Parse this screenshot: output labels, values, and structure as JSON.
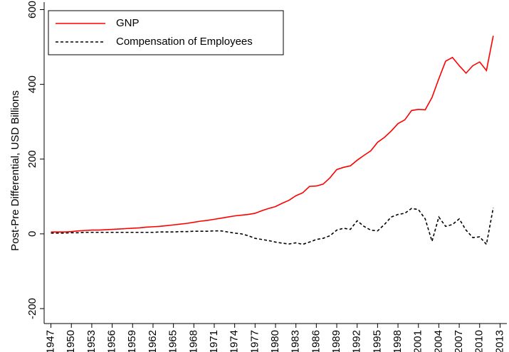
{
  "chart_data": {
    "type": "line",
    "y_label": "Post-Pre Differential, USD Billions",
    "x": [
      1947,
      1948,
      1949,
      1950,
      1951,
      1952,
      1953,
      1954,
      1955,
      1956,
      1957,
      1958,
      1959,
      1960,
      1961,
      1962,
      1963,
      1964,
      1965,
      1966,
      1967,
      1968,
      1969,
      1970,
      1971,
      1972,
      1973,
      1974,
      1975,
      1976,
      1977,
      1978,
      1979,
      1980,
      1981,
      1982,
      1983,
      1984,
      1985,
      1986,
      1987,
      1988,
      1989,
      1990,
      1991,
      1992,
      1993,
      1994,
      1995,
      1996,
      1997,
      1998,
      1999,
      2000,
      2001,
      2002,
      2003,
      2004,
      2005,
      2006,
      2007,
      2008,
      2009,
      2010,
      2011,
      2012
    ],
    "series": [
      {
        "name": "GNP",
        "color": "#ff0000",
        "dash": "solid",
        "values": [
          5,
          5,
          5,
          6,
          8,
          9,
          10,
          10,
          11,
          12,
          13,
          14,
          15,
          16,
          18,
          19,
          20,
          22,
          24,
          26,
          28,
          31,
          34,
          36,
          39,
          42,
          45,
          48,
          50,
          52,
          55,
          62,
          68,
          73,
          82,
          90,
          102,
          110,
          127,
          128,
          133,
          150,
          172,
          178,
          182,
          197,
          210,
          222,
          245,
          258,
          275,
          295,
          305,
          330,
          333,
          332,
          365,
          415,
          462,
          472,
          450,
          430,
          450,
          460,
          437,
          530
        ]
      },
      {
        "name": "Compensation of Employees",
        "color": "#000000",
        "dash": "dashed",
        "values": [
          2,
          2,
          2,
          3,
          3,
          4,
          4,
          4,
          4,
          4,
          4,
          4,
          4,
          4,
          4,
          4,
          5,
          5,
          5,
          6,
          6,
          7,
          7,
          7,
          8,
          8,
          5,
          2,
          0,
          -5,
          -12,
          -15,
          -18,
          -22,
          -25,
          -27,
          -24,
          -28,
          -22,
          -15,
          -12,
          -5,
          10,
          15,
          12,
          35,
          20,
          10,
          8,
          25,
          45,
          52,
          55,
          68,
          65,
          40,
          -20,
          45,
          20,
          25,
          40,
          10,
          -10,
          -8,
          -28,
          70
        ]
      }
    ],
    "xlim": [
      1946,
      2014
    ],
    "xticks": [
      1947,
      1950,
      1953,
      1956,
      1959,
      1962,
      1965,
      1968,
      1971,
      1974,
      1977,
      1980,
      1983,
      1986,
      1989,
      1992,
      1995,
      1998,
      2001,
      2004,
      2007,
      2010,
      2013
    ],
    "ylim": [
      -240,
      620
    ],
    "yticks": [
      -200,
      0,
      200,
      400,
      600
    ],
    "legend": "top-left",
    "grid": false
  }
}
